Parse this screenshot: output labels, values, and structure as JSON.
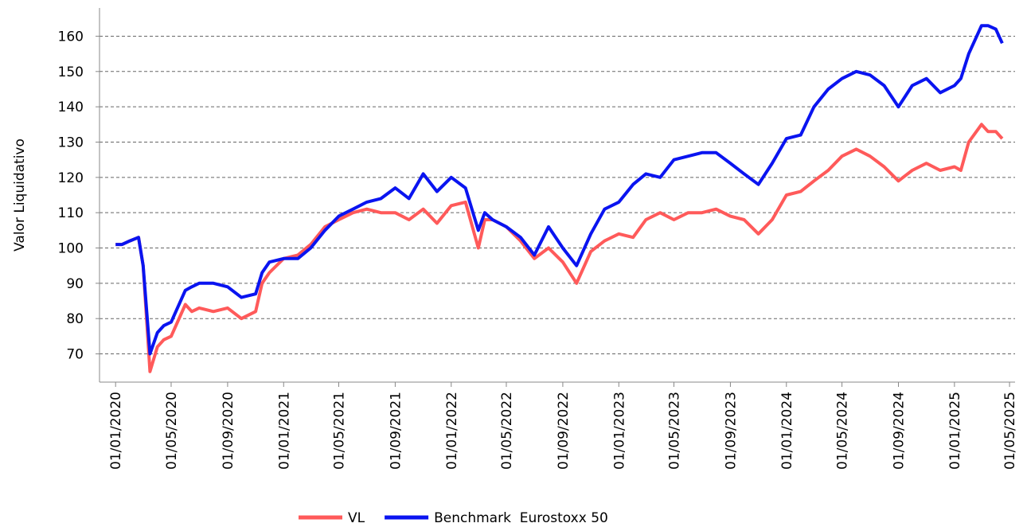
{
  "chart_data": {
    "type": "line",
    "y_label": "Valor Liquidativo",
    "x": [
      "01/01/2020",
      "15/01/2020",
      "01/02/2020",
      "20/02/2020",
      "01/03/2020",
      "16/03/2020",
      "01/04/2020",
      "15/04/2020",
      "01/05/2020",
      "01/06/2020",
      "15/06/2020",
      "01/07/2020",
      "01/08/2020",
      "01/09/2020",
      "01/10/2020",
      "01/11/2020",
      "15/11/2020",
      "01/12/2020",
      "01/01/2021",
      "01/02/2021",
      "01/03/2021",
      "01/04/2021",
      "01/05/2021",
      "01/06/2021",
      "01/07/2021",
      "01/08/2021",
      "01/09/2021",
      "01/10/2021",
      "01/11/2021",
      "01/12/2021",
      "01/01/2022",
      "01/02/2022",
      "01/03/2022",
      "15/03/2022",
      "01/04/2022",
      "01/05/2022",
      "01/06/2022",
      "01/07/2022",
      "01/08/2022",
      "01/09/2022",
      "01/10/2022",
      "01/11/2022",
      "01/12/2022",
      "01/01/2023",
      "01/02/2023",
      "01/03/2023",
      "01/04/2023",
      "01/05/2023",
      "01/06/2023",
      "01/07/2023",
      "01/08/2023",
      "01/09/2023",
      "01/10/2023",
      "01/11/2023",
      "01/12/2023",
      "01/01/2024",
      "01/02/2024",
      "01/03/2024",
      "01/04/2024",
      "01/05/2024",
      "01/06/2024",
      "01/07/2024",
      "01/08/2024",
      "01/09/2024",
      "01/10/2024",
      "01/11/2024",
      "01/12/2024",
      "01/01/2025",
      "15/01/2025",
      "01/02/2025",
      "01/03/2025",
      "15/03/2025",
      "01/04/2025",
      "15/04/2025"
    ],
    "series": [
      {
        "name": "VL",
        "color": "#ff5a5a",
        "values": [
          101,
          101,
          102,
          103,
          95,
          65,
          72,
          74,
          75,
          84,
          82,
          83,
          82,
          83,
          80,
          82,
          90,
          93,
          97,
          98,
          101,
          106,
          108,
          110,
          111,
          110,
          110,
          108,
          111,
          107,
          112,
          113,
          100,
          108,
          108,
          106,
          102,
          97,
          100,
          96,
          90,
          99,
          102,
          104,
          103,
          108,
          110,
          108,
          110,
          110,
          111,
          109,
          108,
          104,
          108,
          115,
          116,
          119,
          122,
          126,
          128,
          126,
          123,
          119,
          122,
          124,
          122,
          123,
          122,
          130,
          135,
          133,
          133,
          131
        ]
      },
      {
        "name": "Benchmark  Eurostoxx 50",
        "color": "#0a14f0",
        "values": [
          101,
          101,
          102,
          103,
          95,
          70,
          76,
          78,
          79,
          88,
          89,
          90,
          90,
          89,
          86,
          87,
          93,
          96,
          97,
          97,
          100,
          105,
          109,
          111,
          113,
          114,
          117,
          114,
          121,
          116,
          120,
          117,
          105,
          110,
          108,
          106,
          103,
          98,
          106,
          100,
          95,
          104,
          111,
          113,
          118,
          121,
          120,
          125,
          126,
          127,
          127,
          124,
          121,
          118,
          124,
          131,
          132,
          140,
          145,
          148,
          150,
          149,
          146,
          140,
          146,
          148,
          144,
          146,
          148,
          155,
          163,
          163,
          162,
          158
        ]
      }
    ],
    "xlim": [
      "27/11/2019",
      "13/05/2025"
    ],
    "xticks": [
      "01/01/2020",
      "01/05/2020",
      "01/09/2020",
      "01/01/2021",
      "01/05/2021",
      "01/09/2021",
      "01/01/2022",
      "01/05/2022",
      "01/09/2022",
      "01/01/2023",
      "01/05/2023",
      "01/09/2023",
      "01/01/2024",
      "01/05/2024",
      "01/09/2024",
      "01/01/2025",
      "01/05/2025"
    ],
    "ylim": [
      62,
      168
    ],
    "yticks": [
      70,
      80,
      90,
      100,
      110,
      120,
      130,
      140,
      150,
      160
    ],
    "grid": true,
    "legend": "bottom"
  }
}
